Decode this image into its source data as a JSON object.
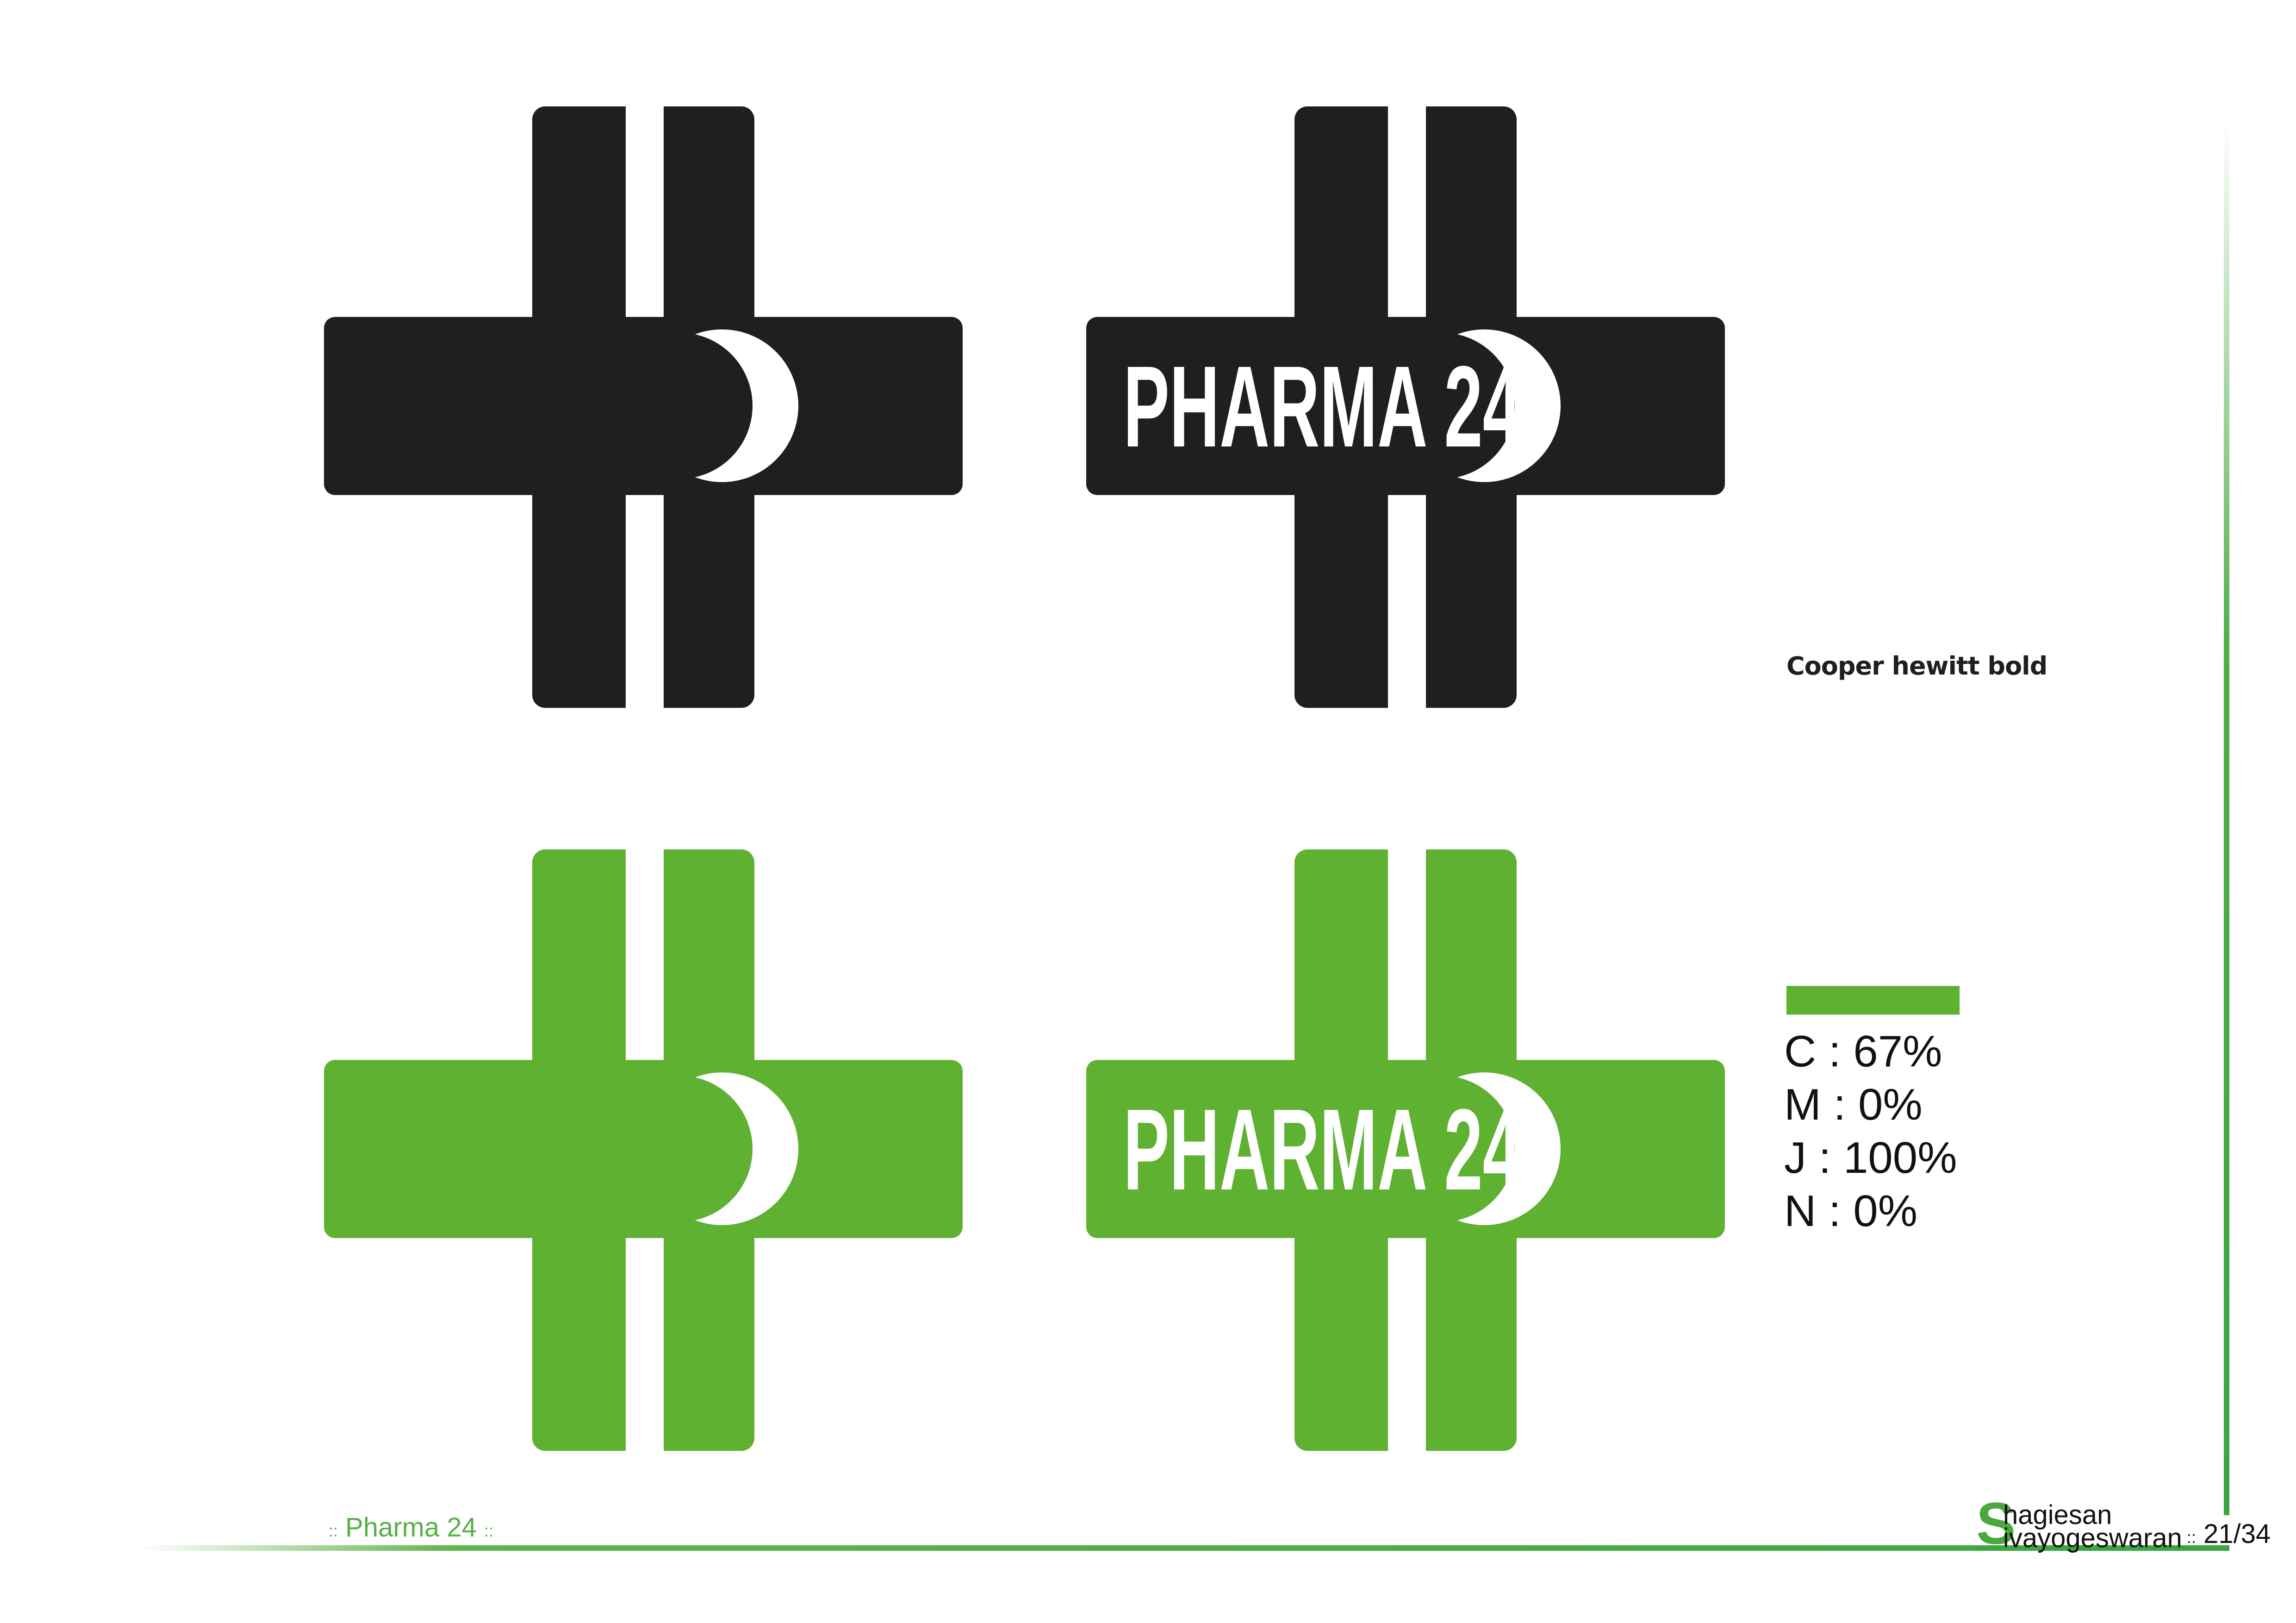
{
  "logos": {
    "logo_text": "PHARMA 24",
    "black_color": "#1f1f1d",
    "green_color": "#5fb132"
  },
  "typeface": {
    "label": "Cooper hewitt bold"
  },
  "color_spec": {
    "swatch_color": "#5fb132",
    "values": [
      "C : 67%",
      "M : 0%",
      "J : 100%",
      "N : 0%"
    ]
  },
  "footer": {
    "separator": "::",
    "project": "Pharma 24",
    "author_initial": "S",
    "author_first": "hagiesan",
    "author_last": "ivayogeswaran",
    "page": "21/34",
    "accent_color": "#3aa540"
  }
}
